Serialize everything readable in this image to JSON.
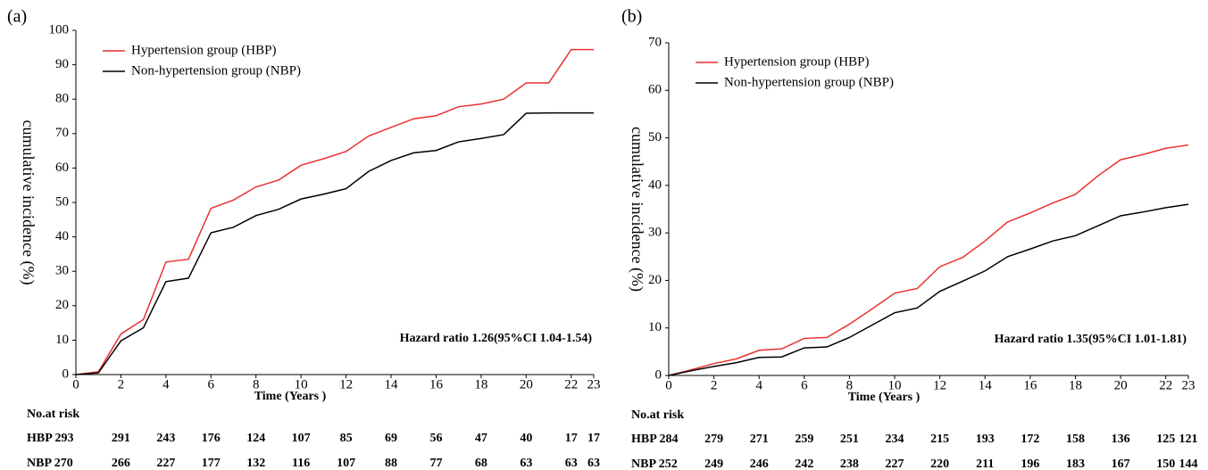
{
  "chart_data": [
    {
      "type": "line",
      "panel": "(a)",
      "y_label": "cumulative incidence (%)",
      "x_label": "Time (Years )",
      "annotation": "Hazard ratio 1.26(95%CI 1.04-1.54)",
      "x": [
        0,
        1,
        2,
        3,
        4,
        5,
        6,
        7,
        8,
        9,
        10,
        11,
        12,
        13,
        14,
        15,
        16,
        17,
        18,
        19,
        20,
        21,
        22,
        23
      ],
      "series": [
        {
          "name": "Hypertension group (HBP)",
          "color": "#e8312f",
          "values": [
            0,
            0.8,
            11.8,
            16,
            32.7,
            33.5,
            48.3,
            50.7,
            54.5,
            56.5,
            60.8,
            62.7,
            64.8,
            69.3,
            71.8,
            74.3,
            75.2,
            77.8,
            78.6,
            80,
            84.7,
            84.7,
            94.4,
            94.4
          ]
        },
        {
          "name": "Non-hypertension group (NBP)",
          "color": "#000000",
          "values": [
            0,
            0.5,
            9.8,
            13.6,
            27,
            28,
            41.2,
            42.8,
            46.2,
            48,
            51,
            52.4,
            54,
            59,
            62.2,
            64.4,
            65.1,
            67.6,
            68.6,
            69.7,
            75.9,
            76,
            76,
            76
          ]
        }
      ],
      "xlim": [
        0,
        23
      ],
      "xticks": [
        0,
        2,
        4,
        6,
        8,
        10,
        12,
        14,
        16,
        18,
        20,
        22,
        23
      ],
      "ylim": [
        0,
        100
      ],
      "yticks": [
        0,
        10,
        20,
        30,
        40,
        50,
        60,
        70,
        80,
        90,
        100
      ],
      "risk_table": {
        "title": "No.at risk",
        "rows": [
          {
            "label": "HBP 293",
            "values": [
              291,
              243,
              176,
              124,
              107,
              85,
              69,
              56,
              47,
              40,
              17,
              17
            ]
          },
          {
            "label": "NBP 270",
            "values": [
              266,
              227,
              177,
              132,
              116,
              107,
              88,
              77,
              68,
              63,
              63,
              63
            ]
          }
        ]
      }
    },
    {
      "type": "line",
      "panel": "(b)",
      "y_label": "cumulative incidence (%)",
      "x_label": "Time (Years )",
      "annotation": "Hazard ratio 1.35(95%CI 1.01-1.81)",
      "x": [
        0,
        1,
        2,
        3,
        4,
        5,
        6,
        7,
        8,
        9,
        10,
        11,
        12,
        13,
        14,
        15,
        16,
        17,
        18,
        19,
        20,
        21,
        22,
        23
      ],
      "series": [
        {
          "name": "Hypertension group (HBP)",
          "color": "#e8312f",
          "values": [
            0,
            1.2,
            2.5,
            3.5,
            5.3,
            5.6,
            7.8,
            8,
            10.8,
            14,
            17.3,
            18.3,
            22.9,
            24.8,
            28.3,
            32.3,
            34.2,
            36.3,
            38.1,
            42,
            45.4,
            46.5,
            47.8,
            48.5
          ]
        },
        {
          "name": "Non-hypertension group (NBP)",
          "color": "#000000",
          "values": [
            0,
            1,
            1.9,
            2.7,
            3.8,
            3.9,
            5.8,
            6,
            8,
            10.6,
            13.2,
            14.2,
            17.7,
            19.8,
            22,
            25,
            26.6,
            28.3,
            29.4,
            31.5,
            33.6,
            34.4,
            35.3,
            36
          ]
        }
      ],
      "xlim": [
        0,
        23
      ],
      "xticks": [
        0,
        2,
        4,
        6,
        8,
        10,
        12,
        14,
        16,
        18,
        20,
        22,
        23
      ],
      "ylim": [
        0,
        70
      ],
      "yticks": [
        0,
        10,
        20,
        30,
        40,
        50,
        60,
        70
      ],
      "risk_table": {
        "title": "No.at risk",
        "rows": [
          {
            "label": "HBP 284",
            "values": [
              279,
              271,
              259,
              251,
              234,
              215,
              193,
              172,
              158,
              136,
              125,
              121
            ]
          },
          {
            "label": "NBP 252",
            "values": [
              249,
              246,
              242,
              238,
              227,
              220,
              211,
              196,
              183,
              167,
              150,
              144
            ]
          }
        ]
      }
    }
  ]
}
